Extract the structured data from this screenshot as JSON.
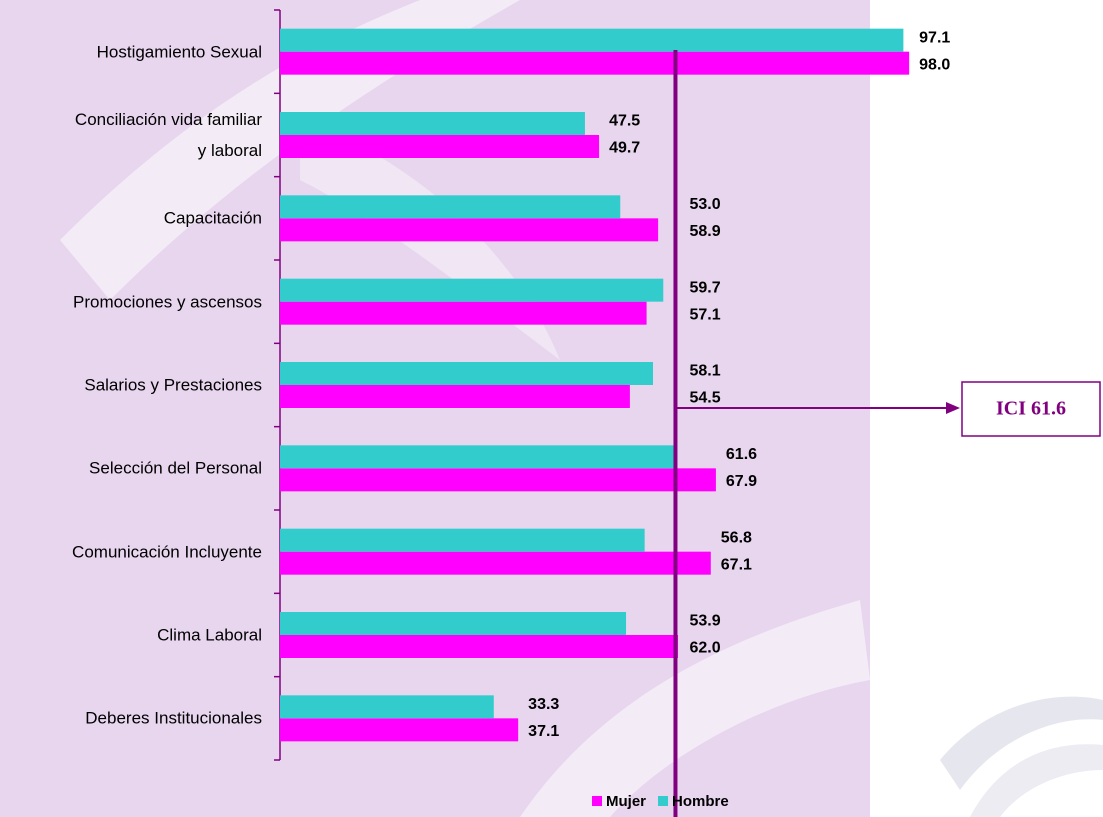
{
  "chart_data": {
    "type": "bar",
    "orientation": "horizontal",
    "categories": [
      "Hostigamiento Sexual",
      "Conciliación vida familiar\ny laboral",
      "Capacitación",
      "Promociones y ascensos",
      "Salarios y Prestaciones",
      "Selección del Personal",
      "Comunicación Incluyente",
      "Clima Laboral",
      "Deberes Institucionales"
    ],
    "series": [
      {
        "name": "Mujer",
        "color": "#ff00ff",
        "values": [
          98.0,
          49.7,
          58.9,
          57.1,
          54.5,
          67.9,
          67.1,
          62.0,
          37.1
        ],
        "value_labels": [
          "98.0",
          "49.7",
          "58.9",
          "57.1",
          "54.5",
          "67.9",
          "67.1",
          "62.0",
          "37.1"
        ]
      },
      {
        "name": "Hombre",
        "color": "#33cccc",
        "values": [
          97.1,
          47.5,
          53.0,
          59.7,
          58.1,
          61.6,
          56.8,
          53.9,
          33.3
        ],
        "value_labels": [
          "97.1",
          "47.5",
          "53.0",
          "59.7",
          "58.1",
          "61.6",
          "56.8",
          "53.9",
          "33.3"
        ]
      }
    ],
    "xlim": [
      0,
      100
    ],
    "reference_line": {
      "value": 61.6,
      "label": "ICI 61.6",
      "color": "#800080"
    }
  }
}
